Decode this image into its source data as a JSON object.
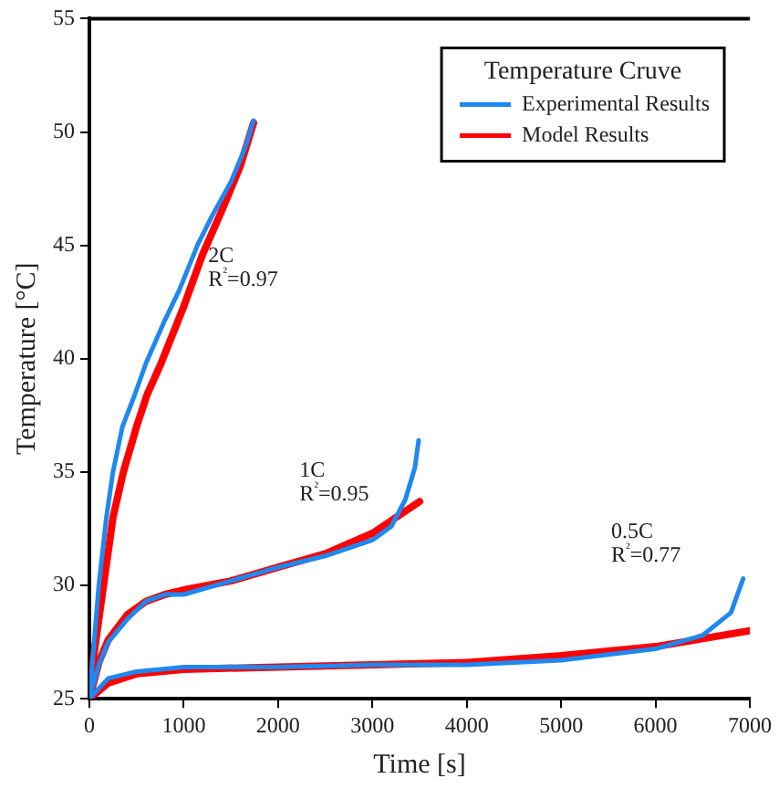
{
  "chart_data": {
    "type": "line",
    "xlabel": "Time [s]",
    "ylabel": "Temperature [°C]",
    "legend_title": "Temperature Cruve",
    "legend": "top right",
    "grid": false,
    "marker": "none",
    "line_style": "solid",
    "xlim": [
      0,
      7000
    ],
    "xticks": [
      0,
      1000,
      2000,
      3000,
      4000,
      5000,
      6000,
      7000
    ],
    "ylim": [
      25,
      55
    ],
    "yticks": [
      25,
      30,
      35,
      40,
      45,
      50,
      55
    ],
    "series": [
      {
        "name": "Experimental Results",
        "color": "#1e88f0",
        "x": [
          0,
          50,
          100,
          180,
          250,
          350,
          480,
          600,
          800,
          950,
          1145,
          1300,
          1500,
          1650,
          1740,
          null,
          0,
          100,
          200,
          400,
          600,
          800,
          1000,
          1500,
          2000,
          2500,
          3000,
          3200,
          3350,
          3450,
          3490,
          null,
          0,
          200,
          500,
          1000,
          2000,
          3000,
          4000,
          5000,
          6000,
          6500,
          6800,
          6930
        ],
        "values": [
          25,
          27.5,
          30,
          33,
          35,
          37,
          38.4,
          39.8,
          41.7,
          43,
          45,
          46.3,
          47.8,
          49.3,
          50.5,
          null,
          25,
          26.5,
          27.5,
          28.5,
          29.3,
          29.6,
          29.6,
          30.2,
          30.8,
          31.3,
          32,
          32.6,
          33.8,
          35.2,
          36.4,
          null,
          25,
          25.9,
          26.2,
          26.4,
          26.4,
          26.5,
          26.5,
          26.7,
          27.2,
          27.8,
          28.8,
          30.3
        ]
      },
      {
        "name": "Model Results",
        "color": "#ff0000",
        "x": [
          0,
          50,
          150,
          250,
          360,
          500,
          610,
          760,
          1000,
          1200,
          1400,
          1600,
          1740,
          null,
          0,
          100,
          200,
          400,
          600,
          800,
          1000,
          1500,
          2000,
          2500,
          3000,
          3500,
          null,
          0,
          200,
          500,
          1000,
          2000,
          3000,
          4000,
          5000,
          6000,
          7000
        ],
        "values": [
          25,
          27,
          30,
          33,
          35,
          37,
          38.4,
          39.8,
          42.3,
          44.6,
          46.5,
          48.5,
          50.4,
          null,
          25,
          26.6,
          27.6,
          28.7,
          29.3,
          29.6,
          29.8,
          30.2,
          30.8,
          31.4,
          32.3,
          33.7,
          null,
          25,
          25.7,
          26.1,
          26.3,
          26.4,
          26.5,
          26.6,
          26.9,
          27.3,
          28
        ]
      }
    ],
    "annotations": [
      "2C",
      "R²=0.97",
      "1C",
      "R²=0.95",
      "0.5C",
      "R²=0.77"
    ]
  }
}
